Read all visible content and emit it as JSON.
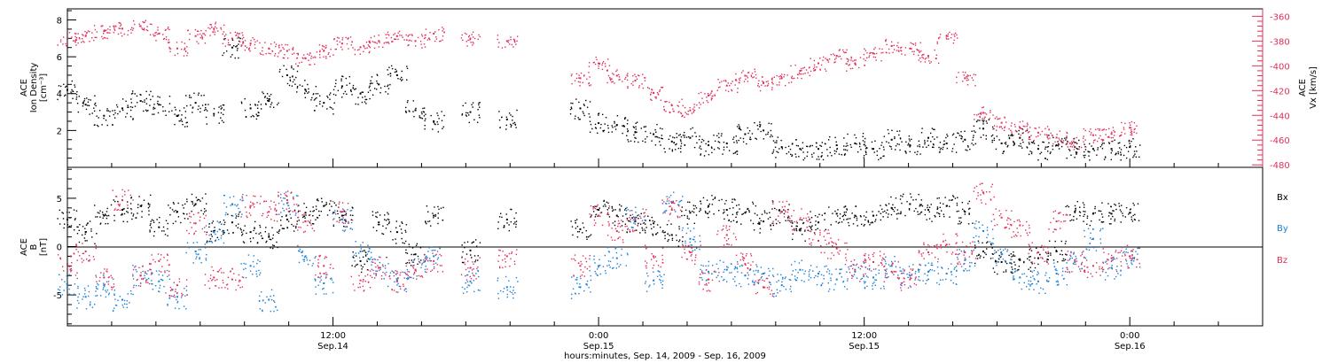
{
  "colors": {
    "frame": "#000000",
    "density": "#000000",
    "velocity": "#e0305a",
    "bx": "#000000",
    "by": "#1a7fd6",
    "bz": "#e0305a"
  },
  "chart_data": [
    {
      "type": "scatter",
      "panel": "top",
      "ylabel": [
        "ACE",
        "Ion Density",
        "[cm⁻³]"
      ],
      "ylim": [
        0,
        8.6
      ],
      "yticks": [
        "2",
        "4",
        "6",
        "8"
      ],
      "ytick_values": [
        2,
        4,
        6,
        8
      ],
      "y2label": [
        "ACE",
        "Vx [km/s]"
      ],
      "y2lim": [
        -482,
        -354
      ],
      "y2ticks": [
        "-360",
        "-380",
        "-400",
        "-420",
        "-440",
        "-460",
        "-480"
      ],
      "y2tick_values": [
        -360,
        -380,
        -400,
        -420,
        -440,
        -460,
        -480
      ],
      "series": [
        {
          "name": "Ion Density",
          "axis": "left",
          "color": "#000000",
          "x": [
            0,
            1,
            2,
            3,
            4,
            5,
            6,
            7,
            8,
            9,
            10,
            11,
            12,
            13,
            14,
            15,
            16,
            17,
            18,
            19,
            20,
            22,
            24,
            28,
            29,
            30,
            31,
            32,
            33,
            34,
            35,
            36,
            37,
            38,
            39,
            40,
            41,
            42,
            43,
            44,
            45,
            46,
            47,
            48,
            49,
            50,
            51,
            52,
            53,
            54,
            55,
            56,
            57,
            58
          ],
          "y": [
            4.2,
            3.4,
            2.8,
            3.2,
            3.6,
            3.4,
            2.8,
            3.5,
            2.9,
            6.5,
            3.2,
            3.6,
            5.0,
            4.2,
            3.5,
            4.4,
            4.0,
            4.5,
            5.0,
            3.1,
            2.5,
            3.0,
            2.6,
            3.2,
            2.4,
            2.3,
            1.9,
            1.8,
            1.4,
            1.6,
            1.2,
            1.3,
            1.8,
            2.0,
            1.1,
            1.0,
            1.0,
            1.2,
            1.3,
            1.0,
            1.5,
            1.2,
            1.6,
            1.3,
            1.5,
            2.1,
            1.3,
            1.6,
            1.0,
            1.2,
            1.1,
            1.0,
            1.0,
            1.1
          ]
        },
        {
          "name": "Vx",
          "axis": "right",
          "color": "#e0305a",
          "x": [
            0,
            1,
            2,
            3,
            4,
            5,
            6,
            7,
            8,
            9,
            10,
            11,
            12,
            13,
            14,
            15,
            16,
            17,
            18,
            19,
            20,
            22,
            24,
            28,
            29,
            30,
            31,
            32,
            33,
            34,
            35,
            36,
            37,
            38,
            39,
            40,
            41,
            42,
            43,
            44,
            45,
            46,
            47,
            48,
            49,
            50,
            51,
            52,
            53,
            54,
            55,
            56,
            57,
            58
          ],
          "y": [
            -378,
            -376,
            -372,
            -370,
            -368,
            -374,
            -386,
            -376,
            -370,
            -378,
            -382,
            -386,
            -388,
            -394,
            -388,
            -382,
            -385,
            -380,
            -376,
            -380,
            -374,
            -378,
            -380,
            -410,
            -398,
            -408,
            -412,
            -422,
            -432,
            -436,
            -424,
            -416,
            -408,
            -414,
            -410,
            -404,
            -398,
            -392,
            -398,
            -390,
            -384,
            -386,
            -392,
            -376,
            -410,
            -438,
            -446,
            -450,
            -454,
            -458,
            -462,
            -456,
            -455,
            -450
          ]
        }
      ]
    },
    {
      "type": "scatter",
      "panel": "bottom",
      "ylabel": [
        "ACE",
        "B",
        "[nT]"
      ],
      "ylim": [
        -8.2,
        8.2
      ],
      "yticks": [
        "5",
        "0",
        "-5"
      ],
      "ytick_values": [
        5,
        0,
        -5
      ],
      "legend": [
        "Bx",
        "By",
        "Bz"
      ],
      "legend_position": "right",
      "series": [
        {
          "name": "Bx",
          "color": "#000000",
          "x": [
            0,
            1,
            2,
            3,
            4,
            5,
            6,
            7,
            8,
            9,
            10,
            11,
            12,
            13,
            14,
            15,
            16,
            17,
            18,
            19,
            20,
            22,
            24,
            28,
            29,
            30,
            31,
            32,
            33,
            34,
            35,
            36,
            37,
            38,
            39,
            40,
            41,
            42,
            43,
            44,
            45,
            46,
            47,
            48,
            49,
            50,
            51,
            52,
            53,
            54,
            55,
            56,
            57,
            58
          ],
          "y": [
            2.8,
            1.5,
            3.2,
            3.8,
            4.2,
            2.0,
            3.6,
            4.4,
            1.6,
            2.5,
            1.5,
            1.0,
            2.8,
            3.5,
            4.2,
            3.2,
            -1.5,
            2.5,
            1.5,
            -0.8,
            3.2,
            -0.4,
            2.8,
            1.8,
            3.8,
            3.2,
            2.6,
            2.4,
            1.2,
            3.5,
            4.2,
            3.8,
            3.5,
            2.6,
            3.6,
            1.8,
            2.5,
            3.4,
            3.2,
            3.2,
            4.0,
            4.4,
            3.8,
            4.2,
            3.6,
            -0.5,
            -1.6,
            -1.4,
            -1.2,
            -0.5,
            3.6,
            3.4,
            3.4,
            3.5
          ]
        },
        {
          "name": "By",
          "color": "#1a7fd6",
          "x": [
            0,
            1,
            2,
            3,
            4,
            5,
            6,
            7,
            8,
            9,
            10,
            11,
            12,
            13,
            14,
            15,
            16,
            17,
            18,
            19,
            20,
            22,
            24,
            28,
            29,
            30,
            31,
            32,
            33,
            34,
            35,
            36,
            37,
            38,
            39,
            40,
            41,
            42,
            43,
            44,
            45,
            46,
            47,
            48,
            49,
            50,
            51,
            52,
            53,
            54,
            55,
            56,
            57,
            58
          ],
          "y": [
            -4.0,
            -5.2,
            -4.0,
            -5.5,
            -3.0,
            -3.6,
            -5.2,
            -0.5,
            1.5,
            4.4,
            -2.0,
            -5.5,
            4.5,
            -1.0,
            -3.8,
            2.8,
            -0.5,
            -2.2,
            -3.5,
            -2.4,
            -1.0,
            -3.6,
            -4.2,
            -4.2,
            -2.0,
            -1.2,
            3.0,
            -3.5,
            4.6,
            0.8,
            -2.6,
            -2.4,
            -3.0,
            -2.8,
            -4.0,
            -2.4,
            -2.8,
            -3.4,
            -2.6,
            -3.2,
            -2.0,
            -3.0,
            -2.6,
            -2.8,
            -1.4,
            1.6,
            -0.8,
            -3.2,
            -3.6,
            -2.8,
            -1.6,
            0.8,
            -2.2,
            -1.0
          ]
        },
        {
          "name": "Bz",
          "color": "#e0305a",
          "x": [
            0,
            1,
            2,
            3,
            4,
            5,
            6,
            7,
            8,
            9,
            10,
            11,
            12,
            13,
            14,
            15,
            16,
            17,
            18,
            19,
            20,
            22,
            24,
            28,
            29,
            30,
            31,
            32,
            33,
            34,
            35,
            36,
            37,
            38,
            39,
            40,
            41,
            42,
            43,
            44,
            45,
            46,
            47,
            48,
            49,
            50,
            51,
            52,
            53,
            54,
            55,
            56,
            57,
            58
          ],
          "y": [
            -1.8,
            -0.5,
            -3.2,
            4.8,
            -3.0,
            -1.5,
            -4.0,
            2.4,
            -3.2,
            -3.4,
            4.2,
            3.6,
            4.8,
            2.6,
            -2.0,
            3.6,
            -3.5,
            -2.2,
            -3.6,
            -2.4,
            -1.5,
            -2.2,
            -1.0,
            -2.0,
            3.2,
            1.6,
            2.8,
            -1.0,
            3.8,
            -0.6,
            -3.4,
            1.2,
            -1.8,
            -4.2,
            3.6,
            2.8,
            0.6,
            -0.2,
            -2.4,
            -1.6,
            -2.6,
            -3.4,
            -0.6,
            0.2,
            -0.6,
            5.6,
            3.0,
            2.2,
            -0.6,
            2.6,
            -1.4,
            -2.0,
            -1.2,
            -1.0
          ]
        }
      ]
    }
  ],
  "xaxis": {
    "label": "hours:minutes, Sep. 14, 2009 - Sep. 16, 2009",
    "ticks": [
      {
        "hour": 12,
        "time": "12:00",
        "date": "Sep.14"
      },
      {
        "hour": 24,
        "time": "0:00",
        "date": "Sep.15"
      },
      {
        "hour": 36,
        "time": "12:00",
        "date": "Sep.15"
      },
      {
        "hour": 48,
        "time": "0:00",
        "date": "Sep.16"
      }
    ],
    "range_hours": [
      0,
      54
    ],
    "data_hour_scale": 0.8276
  }
}
